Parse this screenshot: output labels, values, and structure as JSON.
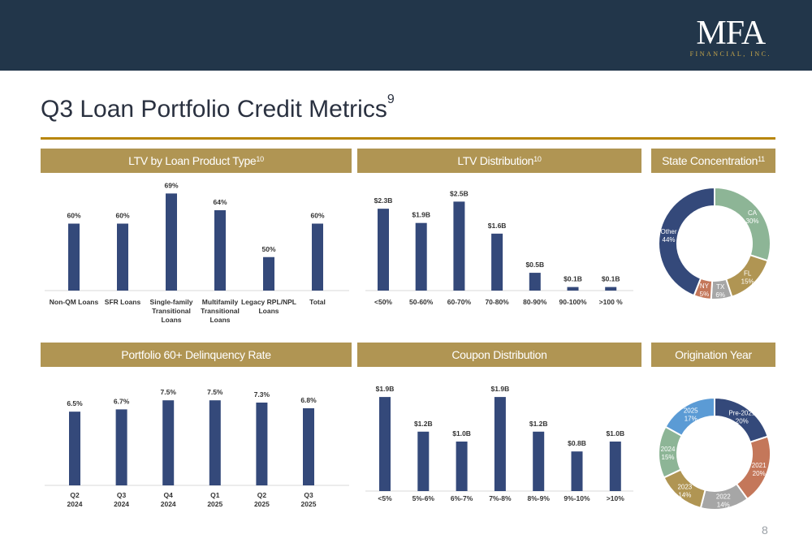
{
  "header": {
    "logo_main": "MFA",
    "logo_sub": "FINANCIAL, INC."
  },
  "title": {
    "text": "Q3 Loan Portfolio Credit Metrics",
    "footnote": "9"
  },
  "page_number": "8",
  "colors": {
    "navy": "#34497a",
    "gold": "#b09553",
    "header_bg": "#22364a",
    "sage": "#8db596",
    "gray": "#a6a6a6",
    "terracotta": "#c4775a",
    "lightblue": "#5b9bd5"
  },
  "chart_data": [
    {
      "type": "bar",
      "title": "LTV by Loan Product Type",
      "title_note": "10",
      "categories": [
        "Non-QM Loans",
        "SFR Loans",
        "Single-family Transitional Loans",
        "Multifamily Transitional Loans",
        "Legacy RPL/NPL Loans",
        "Total"
      ],
      "category_lines": [
        [
          "Non-QM Loans"
        ],
        [
          "SFR Loans"
        ],
        [
          "Single-family",
          "Transitional",
          "Loans"
        ],
        [
          "Multifamily",
          "Transitional",
          "Loans"
        ],
        [
          "Legacy RPL/NPL",
          "Loans"
        ],
        [
          "Total"
        ]
      ],
      "values": [
        60,
        60,
        69,
        64,
        50,
        60
      ],
      "data_labels": [
        "60%",
        "60%",
        "69%",
        "64%",
        "50%",
        "60%"
      ],
      "ylim": [
        40,
        72
      ],
      "grid": false
    },
    {
      "type": "bar",
      "title": "LTV Distribution",
      "title_note": "10",
      "categories": [
        "<50%",
        "50-60%",
        "60-70%",
        "70-80%",
        "80-90%",
        "90-100%",
        ">100 %"
      ],
      "category_lines": [
        [
          "<50%"
        ],
        [
          "50-60%"
        ],
        [
          "60-70%"
        ],
        [
          "70-80%"
        ],
        [
          "80-90%"
        ],
        [
          "90-100%"
        ],
        [
          ">100 %"
        ]
      ],
      "values": [
        2.3,
        1.9,
        2.5,
        1.6,
        0.5,
        0.1,
        0.1
      ],
      "data_labels": [
        "$2.3B",
        "$1.9B",
        "$2.5B",
        "$1.6B",
        "$0.5B",
        "$0.1B",
        "$0.1B"
      ],
      "ylim": [
        0,
        2.6
      ],
      "grid": false
    },
    {
      "type": "pie",
      "title": "State Concentration",
      "title_note": "11",
      "categories": [
        "CA",
        "FL",
        "TX",
        "NY",
        "Other"
      ],
      "values": [
        30,
        15,
        6,
        5,
        44
      ],
      "data_labels": [
        "30%",
        "15%",
        "6%",
        "5%",
        "44%"
      ],
      "colors": [
        "#8db596",
        "#b09553",
        "#a6a6a6",
        "#c4775a",
        "#34497a"
      ]
    },
    {
      "type": "bar",
      "title": "Portfolio 60+ Delinquency Rate",
      "title_note": "",
      "categories": [
        "Q2 2024",
        "Q3 2024",
        "Q4 2024",
        "Q1 2025",
        "Q2 2025",
        "Q3 2025"
      ],
      "category_lines": [
        [
          "Q2",
          "2024"
        ],
        [
          "Q3",
          "2024"
        ],
        [
          "Q4",
          "2024"
        ],
        [
          "Q1",
          "2025"
        ],
        [
          "Q2",
          "2025"
        ],
        [
          "Q3",
          "2025"
        ]
      ],
      "values": [
        6.5,
        6.7,
        7.5,
        7.5,
        7.3,
        6.8
      ],
      "data_labels": [
        "6.5%",
        "6.7%",
        "7.5%",
        "7.5%",
        "7.3%",
        "6.8%"
      ],
      "ylim": [
        0,
        7.8
      ],
      "grid": false
    },
    {
      "type": "bar",
      "title": "Coupon Distribution",
      "title_note": "",
      "categories": [
        "<5%",
        "5%-6%",
        "6%-7%",
        "7%-8%",
        "8%-9%",
        "9%-10%",
        ">10%"
      ],
      "category_lines": [
        [
          "<5%"
        ],
        [
          "5%-6%"
        ],
        [
          "6%-7%"
        ],
        [
          "7%-8%"
        ],
        [
          "8%-9%"
        ],
        [
          "9%-10%"
        ],
        [
          ">10%"
        ]
      ],
      "values": [
        1.9,
        1.2,
        1.0,
        1.9,
        1.2,
        0.8,
        1.0
      ],
      "data_labels": [
        "$1.9B",
        "$1.2B",
        "$1.0B",
        "$1.9B",
        "$1.2B",
        "$0.8B",
        "$1.0B"
      ],
      "ylim": [
        0,
        2.0
      ],
      "grid": false
    },
    {
      "type": "pie",
      "title": "Origination Year",
      "title_note": "",
      "categories": [
        "Pre-2021",
        "2021",
        "2022",
        "2023",
        "2024",
        "2025"
      ],
      "values": [
        20,
        20,
        14,
        14,
        15,
        17
      ],
      "data_labels": [
        "20%",
        "20%",
        "14%",
        "14%",
        "15%",
        "17%"
      ],
      "colors": [
        "#34497a",
        "#c4775a",
        "#a6a6a6",
        "#b09553",
        "#8db596",
        "#5b9bd5"
      ]
    }
  ]
}
